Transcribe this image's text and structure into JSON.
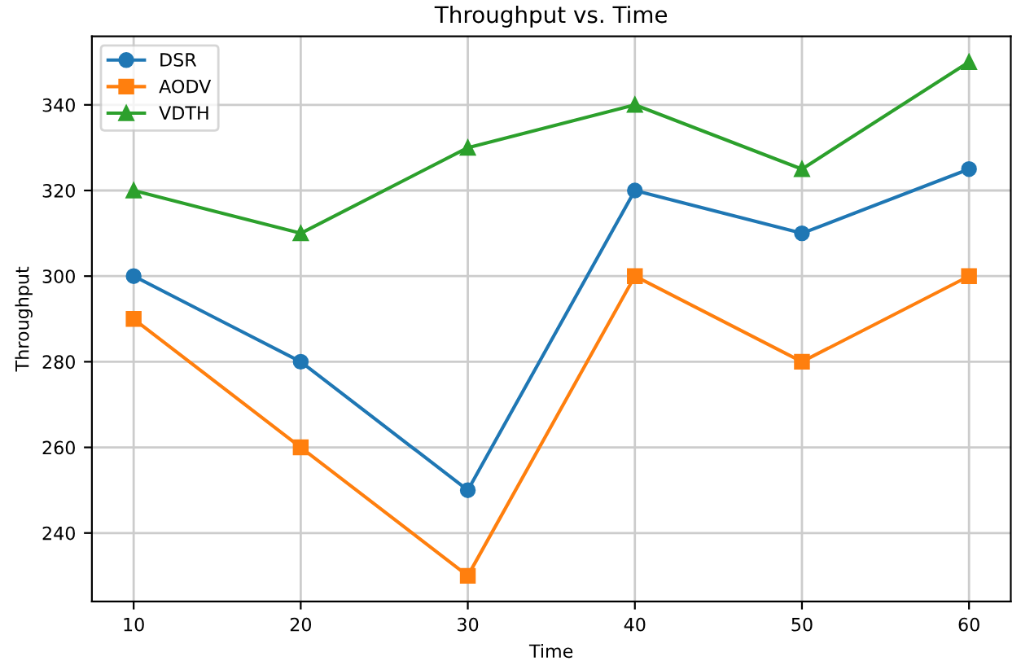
{
  "chart_data": {
    "type": "line",
    "title": "Throughput vs. Time",
    "xlabel": "Time",
    "ylabel": "Throughput",
    "x": [
      10,
      20,
      30,
      40,
      50,
      60
    ],
    "series": [
      {
        "name": "DSR",
        "color": "#1f77b4",
        "marker": "circle",
        "values": [
          300,
          280,
          250,
          320,
          310,
          325
        ]
      },
      {
        "name": "AODV",
        "color": "#ff7f0e",
        "marker": "square",
        "values": [
          290,
          260,
          230,
          300,
          280,
          300
        ]
      },
      {
        "name": "VDTH",
        "color": "#2ca02c",
        "marker": "triangle",
        "values": [
          320,
          310,
          330,
          340,
          325,
          350
        ]
      }
    ],
    "xlim": [
      7.5,
      62.5
    ],
    "xticks": [
      10,
      20,
      30,
      40,
      50,
      60
    ],
    "ylim": [
      224,
      356
    ],
    "yticks": [
      240,
      260,
      280,
      300,
      320,
      340
    ],
    "grid": true,
    "legend": "top left",
    "line_style": "solid"
  }
}
